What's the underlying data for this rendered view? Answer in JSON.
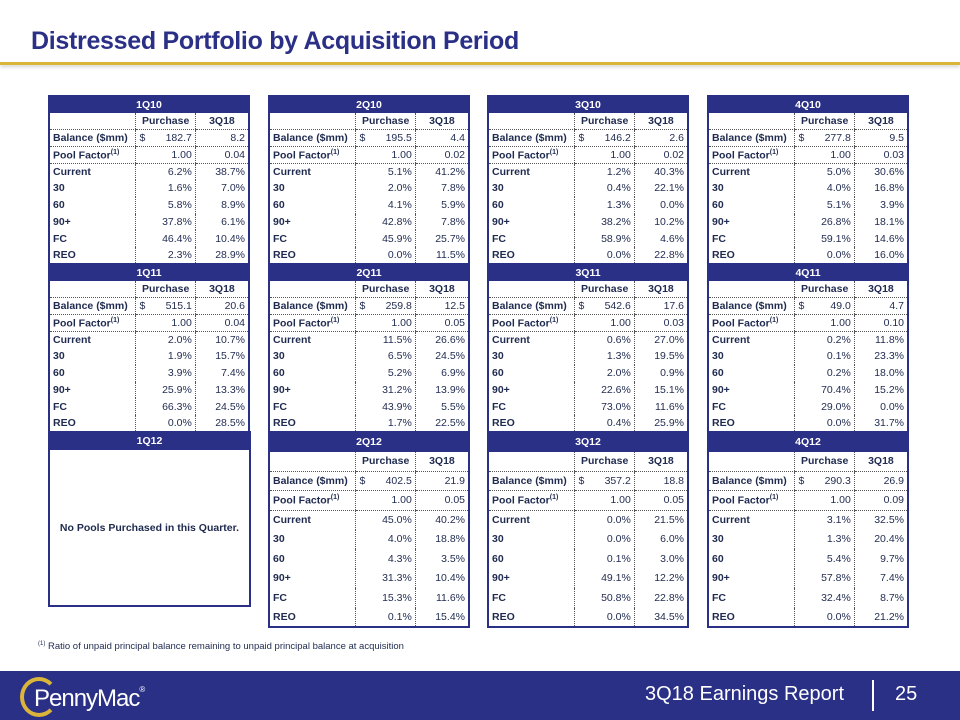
{
  "title": "Distressed Portfolio by Acquisition Period",
  "labels": {
    "purchase": "Purchase",
    "current_period": "3Q18",
    "balance": "Balance ($mm)",
    "pool_factor": "Pool Factor",
    "pool_factor_sup": "(1)",
    "dollar": "$",
    "rows": [
      "Current",
      "30",
      "60",
      "90+",
      "FC",
      "REO"
    ]
  },
  "tables": [
    {
      "period": "1Q10",
      "balance": [
        "182.7",
        "8.2"
      ],
      "pool_factor": [
        "1.00",
        "0.04"
      ],
      "rows": [
        [
          "6.2%",
          "38.7%"
        ],
        [
          "1.6%",
          "7.0%"
        ],
        [
          "5.8%",
          "8.9%"
        ],
        [
          "37.8%",
          "6.1%"
        ],
        [
          "46.4%",
          "10.4%"
        ],
        [
          "2.3%",
          "28.9%"
        ]
      ]
    },
    {
      "period": "2Q10",
      "balance": [
        "195.5",
        "4.4"
      ],
      "pool_factor": [
        "1.00",
        "0.02"
      ],
      "rows": [
        [
          "5.1%",
          "41.2%"
        ],
        [
          "2.0%",
          "7.8%"
        ],
        [
          "4.1%",
          "5.9%"
        ],
        [
          "42.8%",
          "7.8%"
        ],
        [
          "45.9%",
          "25.7%"
        ],
        [
          "0.0%",
          "11.5%"
        ]
      ]
    },
    {
      "period": "3Q10",
      "balance": [
        "146.2",
        "2.6"
      ],
      "pool_factor": [
        "1.00",
        "0.02"
      ],
      "rows": [
        [
          "1.2%",
          "40.3%"
        ],
        [
          "0.4%",
          "22.1%"
        ],
        [
          "1.3%",
          "0.0%"
        ],
        [
          "38.2%",
          "10.2%"
        ],
        [
          "58.9%",
          "4.6%"
        ],
        [
          "0.0%",
          "22.8%"
        ]
      ]
    },
    {
      "period": "4Q10",
      "balance": [
        "277.8",
        "9.5"
      ],
      "pool_factor": [
        "1.00",
        "0.03"
      ],
      "rows": [
        [
          "5.0%",
          "30.6%"
        ],
        [
          "4.0%",
          "16.8%"
        ],
        [
          "5.1%",
          "3.9%"
        ],
        [
          "26.8%",
          "18.1%"
        ],
        [
          "59.1%",
          "14.6%"
        ],
        [
          "0.0%",
          "16.0%"
        ]
      ]
    },
    {
      "period": "1Q11",
      "balance": [
        "515.1",
        "20.6"
      ],
      "pool_factor": [
        "1.00",
        "0.04"
      ],
      "rows": [
        [
          "2.0%",
          "10.7%"
        ],
        [
          "1.9%",
          "15.7%"
        ],
        [
          "3.9%",
          "7.4%"
        ],
        [
          "25.9%",
          "13.3%"
        ],
        [
          "66.3%",
          "24.5%"
        ],
        [
          "0.0%",
          "28.5%"
        ]
      ]
    },
    {
      "period": "2Q11",
      "balance": [
        "259.8",
        "12.5"
      ],
      "pool_factor": [
        "1.00",
        "0.05"
      ],
      "rows": [
        [
          "11.5%",
          "26.6%"
        ],
        [
          "6.5%",
          "24.5%"
        ],
        [
          "5.2%",
          "6.9%"
        ],
        [
          "31.2%",
          "13.9%"
        ],
        [
          "43.9%",
          "5.5%"
        ],
        [
          "1.7%",
          "22.5%"
        ]
      ]
    },
    {
      "period": "3Q11",
      "balance": [
        "542.6",
        "17.6"
      ],
      "pool_factor": [
        "1.00",
        "0.03"
      ],
      "rows": [
        [
          "0.6%",
          "27.0%"
        ],
        [
          "1.3%",
          "19.5%"
        ],
        [
          "2.0%",
          "0.9%"
        ],
        [
          "22.6%",
          "15.1%"
        ],
        [
          "73.0%",
          "11.6%"
        ],
        [
          "0.4%",
          "25.9%"
        ]
      ]
    },
    {
      "period": "4Q11",
      "balance": [
        "49.0",
        "4.7"
      ],
      "pool_factor": [
        "1.00",
        "0.10"
      ],
      "rows": [
        [
          "0.2%",
          "11.8%"
        ],
        [
          "0.1%",
          "23.3%"
        ],
        [
          "0.2%",
          "18.0%"
        ],
        [
          "70.4%",
          "15.2%"
        ],
        [
          "29.0%",
          "0.0%"
        ],
        [
          "0.0%",
          "31.7%"
        ]
      ]
    },
    {
      "period": "2Q12",
      "balance": [
        "402.5",
        "21.9"
      ],
      "pool_factor": [
        "1.00",
        "0.05"
      ],
      "rows": [
        [
          "45.0%",
          "40.2%"
        ],
        [
          "4.0%",
          "18.8%"
        ],
        [
          "4.3%",
          "3.5%"
        ],
        [
          "31.3%",
          "10.4%"
        ],
        [
          "15.3%",
          "11.6%"
        ],
        [
          "0.1%",
          "15.4%"
        ]
      ]
    },
    {
      "period": "3Q12",
      "balance": [
        "357.2",
        "18.8"
      ],
      "pool_factor": [
        "1.00",
        "0.05"
      ],
      "rows": [
        [
          "0.0%",
          "21.5%"
        ],
        [
          "0.0%",
          "6.0%"
        ],
        [
          "0.1%",
          "3.0%"
        ],
        [
          "49.1%",
          "12.2%"
        ],
        [
          "50.8%",
          "22.8%"
        ],
        [
          "0.0%",
          "34.5%"
        ]
      ]
    },
    {
      "period": "4Q12",
      "balance": [
        "290.3",
        "26.9"
      ],
      "pool_factor": [
        "1.00",
        "0.09"
      ],
      "rows": [
        [
          "3.1%",
          "32.5%"
        ],
        [
          "1.3%",
          "20.4%"
        ],
        [
          "5.4%",
          "9.7%"
        ],
        [
          "57.8%",
          "7.4%"
        ],
        [
          "32.4%",
          "8.7%"
        ],
        [
          "0.0%",
          "21.2%"
        ]
      ]
    }
  ],
  "no_pool": {
    "period": "1Q12",
    "message": "No Pools Purchased in this Quarter."
  },
  "footnote": {
    "marker": "(1)",
    "text": "Ratio of unpaid principal balance remaining to unpaid principal balance at acquisition"
  },
  "footer": {
    "logo": "PennyMac",
    "logo_mark": "®",
    "report": "3Q18 Earnings Report",
    "page": "25"
  },
  "colors": {
    "navy": "#2b3087",
    "gold": "#d9b53a"
  }
}
